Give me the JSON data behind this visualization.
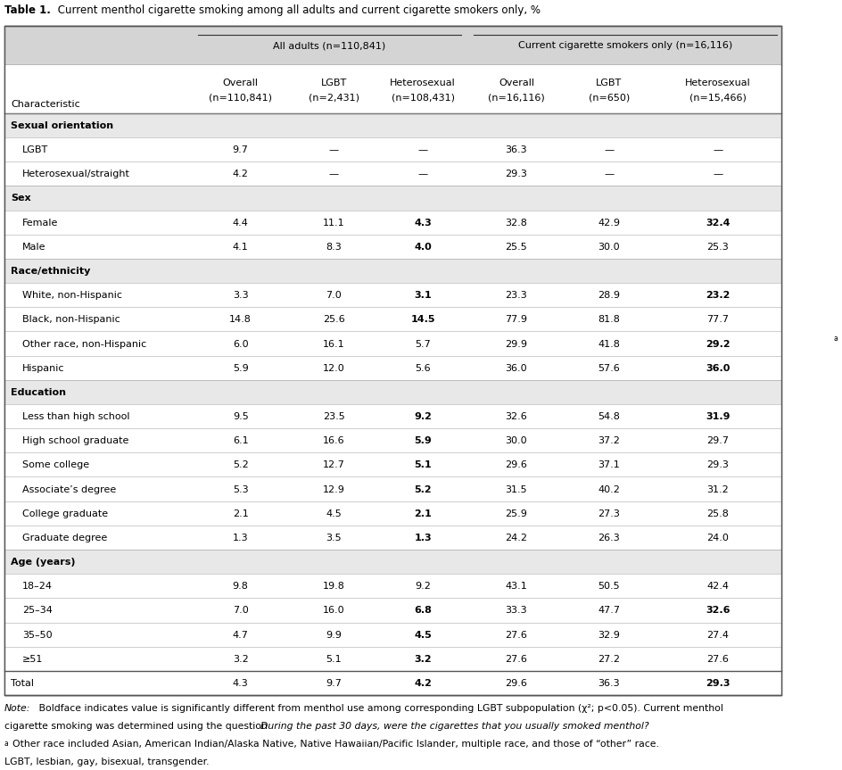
{
  "title_bold": "Table 1.",
  "title_rest": " Current menthol cigarette smoking among all adults and current cigarette smokers only, %",
  "group1_header": "All adults (n=110,841)",
  "group2_header": "Current cigarette smokers only (n=16,116)",
  "col_headers_line1": [
    "Overall",
    "LGBT",
    "Heterosexual",
    "Overall",
    "LGBT",
    "Heterosexual"
  ],
  "col_headers_line2": [
    "(n=110,841)",
    "(n=2,431)",
    "(n=108,431)",
    "(n=16,116)",
    "(n=650)",
    "(n=15,466)"
  ],
  "char_col": "Characteristic",
  "sections": [
    {
      "name": "Sexual orientation",
      "rows": [
        {
          "label": "LGBT",
          "values": [
            "9.7",
            "—",
            "—",
            "36.3",
            "—",
            "—"
          ],
          "bold": [
            false,
            false,
            false,
            false,
            false,
            false
          ]
        },
        {
          "label": "Heterosexual/straight",
          "values": [
            "4.2",
            "—",
            "—",
            "29.3",
            "—",
            "—"
          ],
          "bold": [
            false,
            false,
            false,
            false,
            false,
            false
          ]
        }
      ]
    },
    {
      "name": "Sex",
      "rows": [
        {
          "label": "Female",
          "values": [
            "4.4",
            "11.1",
            "4.3",
            "32.8",
            "42.9",
            "32.4"
          ],
          "bold": [
            false,
            false,
            true,
            false,
            false,
            true
          ]
        },
        {
          "label": "Male",
          "values": [
            "4.1",
            "8.3",
            "4.0",
            "25.5",
            "30.0",
            "25.3"
          ],
          "bold": [
            false,
            false,
            true,
            false,
            false,
            false
          ]
        }
      ]
    },
    {
      "name": "Race/ethnicity",
      "rows": [
        {
          "label": "White, non-Hispanic",
          "values": [
            "3.3",
            "7.0",
            "3.1",
            "23.3",
            "28.9",
            "23.2"
          ],
          "bold": [
            false,
            false,
            true,
            false,
            false,
            true
          ]
        },
        {
          "label": "Black, non-Hispanic",
          "values": [
            "14.8",
            "25.6",
            "14.5",
            "77.9",
            "81.8",
            "77.7"
          ],
          "bold": [
            false,
            false,
            true,
            false,
            false,
            false
          ]
        },
        {
          "label": "Other race, non-Hispanic",
          "superscript": "a",
          "values": [
            "6.0",
            "16.1",
            "5.7",
            "29.9",
            "41.8",
            "29.2"
          ],
          "bold": [
            false,
            false,
            false,
            false,
            false,
            true
          ]
        },
        {
          "label": "Hispanic",
          "values": [
            "5.9",
            "12.0",
            "5.6",
            "36.0",
            "57.6",
            "36.0"
          ],
          "bold": [
            false,
            false,
            false,
            false,
            false,
            true
          ]
        }
      ]
    },
    {
      "name": "Education",
      "rows": [
        {
          "label": "Less than high school",
          "values": [
            "9.5",
            "23.5",
            "9.2",
            "32.6",
            "54.8",
            "31.9"
          ],
          "bold": [
            false,
            false,
            true,
            false,
            false,
            true
          ]
        },
        {
          "label": "High school graduate",
          "values": [
            "6.1",
            "16.6",
            "5.9",
            "30.0",
            "37.2",
            "29.7"
          ],
          "bold": [
            false,
            false,
            true,
            false,
            false,
            false
          ]
        },
        {
          "label": "Some college",
          "values": [
            "5.2",
            "12.7",
            "5.1",
            "29.6",
            "37.1",
            "29.3"
          ],
          "bold": [
            false,
            false,
            true,
            false,
            false,
            false
          ]
        },
        {
          "label": "Associate’s degree",
          "values": [
            "5.3",
            "12.9",
            "5.2",
            "31.5",
            "40.2",
            "31.2"
          ],
          "bold": [
            false,
            false,
            true,
            false,
            false,
            false
          ]
        },
        {
          "label": "College graduate",
          "values": [
            "2.1",
            "4.5",
            "2.1",
            "25.9",
            "27.3",
            "25.8"
          ],
          "bold": [
            false,
            false,
            true,
            false,
            false,
            false
          ]
        },
        {
          "label": "Graduate degree",
          "values": [
            "1.3",
            "3.5",
            "1.3",
            "24.2",
            "26.3",
            "24.0"
          ],
          "bold": [
            false,
            false,
            true,
            false,
            false,
            false
          ]
        }
      ]
    },
    {
      "name": "Age (years)",
      "rows": [
        {
          "label": "18–24",
          "values": [
            "9.8",
            "19.8",
            "9.2",
            "43.1",
            "50.5",
            "42.4"
          ],
          "bold": [
            false,
            false,
            false,
            false,
            false,
            false
          ]
        },
        {
          "label": "25–34",
          "values": [
            "7.0",
            "16.0",
            "6.8",
            "33.3",
            "47.7",
            "32.6"
          ],
          "bold": [
            false,
            false,
            true,
            false,
            false,
            true
          ]
        },
        {
          "label": "35–50",
          "values": [
            "4.7",
            "9.9",
            "4.5",
            "27.6",
            "32.9",
            "27.4"
          ],
          "bold": [
            false,
            false,
            true,
            false,
            false,
            false
          ]
        },
        {
          "label": "≥51",
          "values": [
            "3.2",
            "5.1",
            "3.2",
            "27.6",
            "27.2",
            "27.6"
          ],
          "bold": [
            false,
            false,
            true,
            false,
            false,
            false
          ]
        }
      ]
    }
  ],
  "total_row": {
    "label": "Total",
    "values": [
      "4.3",
      "9.7",
      "4.2",
      "29.6",
      "36.3",
      "29.3"
    ],
    "bold": [
      false,
      false,
      true,
      false,
      false,
      true
    ]
  },
  "bg_color_header": "#d4d4d4",
  "bg_color_section": "#e8e8e8",
  "bg_color_white": "#ffffff",
  "border_color": "#555555",
  "text_color": "#000000",
  "font_size": 8.5,
  "small_font_size": 8.0,
  "note_font_size": 7.8
}
